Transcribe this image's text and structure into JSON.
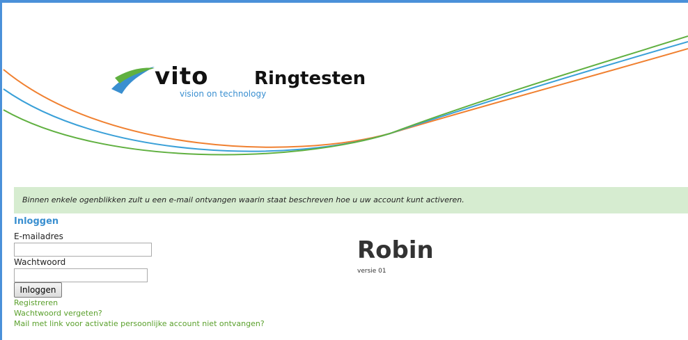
{
  "header": {
    "logo": "vito",
    "tagline": "vision on technology",
    "title": "Ringtesten"
  },
  "notice": "Binnen enkele ogenblikken zult u een e-mail ontvangen waarin staat beschreven hoe u uw account kunt activeren.",
  "login": {
    "heading": "Inloggen",
    "email_label": "E-mailadres",
    "password_label": "Wachtwoord",
    "button": "Inloggen",
    "links": [
      "Registreren",
      "Wachtwoord vergeten?",
      "Mail met link voor activatie persoonlijke account niet ontvangen?"
    ]
  },
  "app": {
    "name": "Robin",
    "version": "versie 01"
  }
}
